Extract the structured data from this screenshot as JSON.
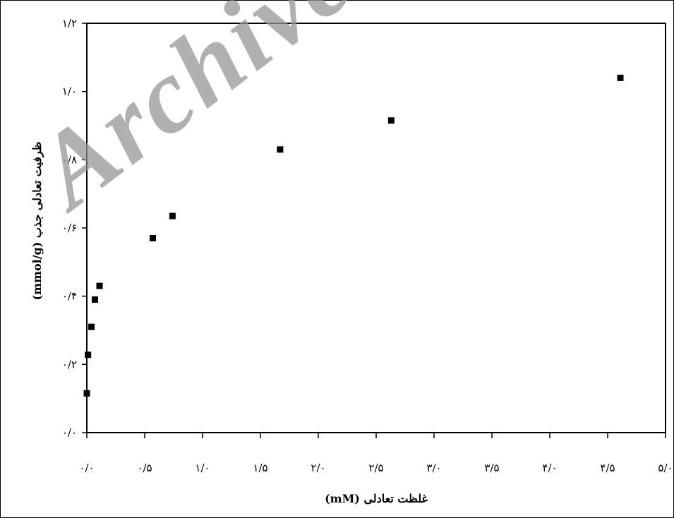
{
  "watermark": "Archive",
  "chart_data": {
    "type": "scatter",
    "xlabel": "غلظت تعادلی (mM)",
    "ylabel": "ظرفیت تعادلی جذب (mmol/g)",
    "xlim": [
      0,
      5
    ],
    "ylim": [
      0,
      1.2
    ],
    "x_ticks": [
      "۰/۰",
      "۰/۵",
      "۱/۰",
      "۱/۵",
      "۲/۰",
      "۲/۵",
      "۳/۰",
      "۳/۵",
      "۴/۰",
      "۴/۵",
      "۵/۰"
    ],
    "y_ticks": [
      "۰/۰",
      "۰/۲",
      "۰/۴",
      "۰/۶",
      "۰/۸",
      "۱/۰",
      "۱/۲"
    ],
    "grid": false,
    "marker_color": "#000000",
    "series": [
      {
        "x": [
          0.0,
          0.01,
          0.04,
          0.07,
          0.11,
          0.57,
          0.74,
          1.67,
          2.63,
          4.61
        ],
        "y": [
          0.115,
          0.228,
          0.31,
          0.39,
          0.43,
          0.57,
          0.635,
          0.83,
          0.915,
          1.04
        ]
      }
    ]
  }
}
